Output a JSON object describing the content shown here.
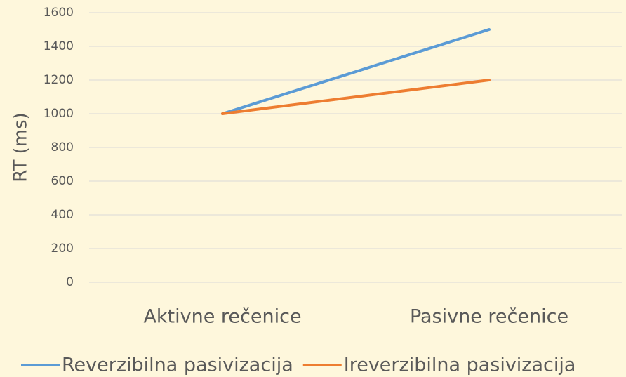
{
  "chart_data": {
    "type": "line",
    "y_label": "RT (ms)",
    "categories": [
      "Aktivne rečenice",
      "Pasivne rečenice"
    ],
    "series": [
      {
        "name": "Reverzibilna pasivizacija",
        "color": "#5b9bd5",
        "values": [
          1000,
          1500
        ]
      },
      {
        "name": "Ireverzibilna pasivizacija",
        "color": "#ed7d31",
        "values": [
          1000,
          1200
        ]
      }
    ],
    "ylim": [
      0,
      1600
    ],
    "yticks": [
      0,
      200,
      400,
      600,
      800,
      1000,
      1200,
      1400,
      1600
    ],
    "grid": true,
    "legend": "bottom"
  }
}
